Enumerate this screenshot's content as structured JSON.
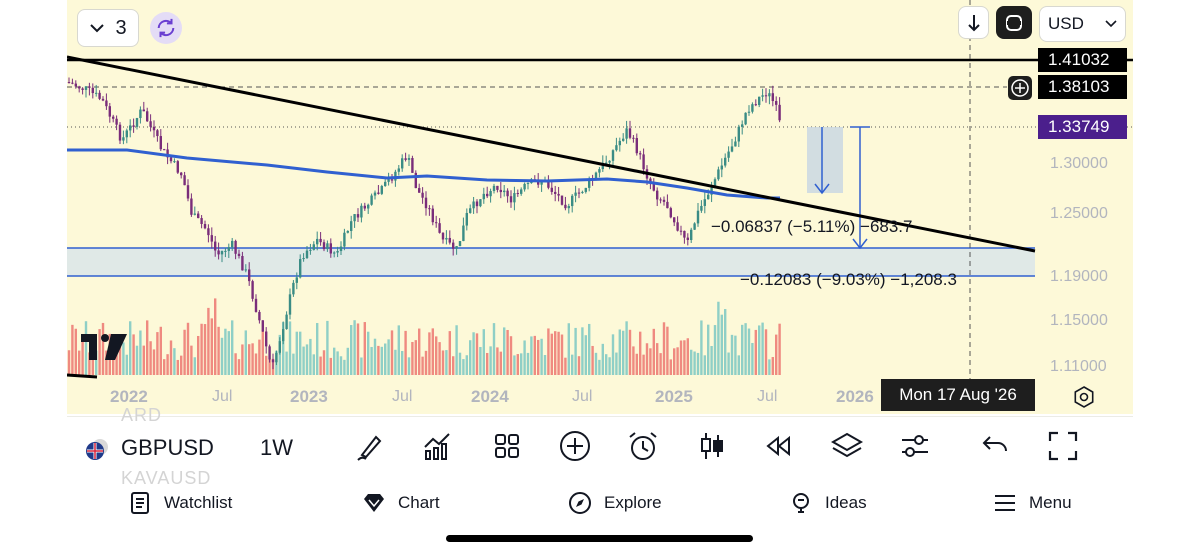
{
  "header": {
    "interval_count": "3",
    "currency": "USD"
  },
  "price_axis": {
    "tags": [
      {
        "id": "line-high",
        "value": "1.41032",
        "bg": "#000000",
        "fg": "#ffffff"
      },
      {
        "id": "line-dashed",
        "value": "1.38103",
        "bg": "#000000",
        "fg": "#ffffff"
      },
      {
        "id": "last-price",
        "value": "1.33749",
        "bg": "#4b1f8c",
        "fg": "#ffffff"
      }
    ],
    "ticks": [
      "1.30000",
      "1.25000",
      "1.19000",
      "1.15000",
      "1.11000"
    ]
  },
  "time_axis": {
    "years": [
      "2022",
      "2023",
      "2024",
      "2025",
      "2026"
    ],
    "months": [
      "Jul",
      "Jul",
      "Jul",
      "Jul"
    ],
    "crosshair_date": "Mon 17 Aug '26"
  },
  "measurements": [
    {
      "text": "−0.06837 (−5.11%) −683.7"
    },
    {
      "text": "−0.12083 (−9.03%) −1,208.3"
    }
  ],
  "symbol": {
    "name": "GBPUSD",
    "interval": "1W",
    "faded_above": "ARD",
    "faded_below": "KAVAUSD"
  },
  "tools": [
    "brush-icon",
    "indicators-icon",
    "layout-grid-icon",
    "add-icon",
    "alarm-icon",
    "candles-icon",
    "replay-icon",
    "layers-icon",
    "sliders-icon",
    "undo-icon",
    "fullscreen-icon"
  ],
  "nav": [
    {
      "label": "Watchlist",
      "icon": "watchlist-icon"
    },
    {
      "label": "Chart",
      "icon": "chart-icon"
    },
    {
      "label": "Explore",
      "icon": "explore-icon"
    },
    {
      "label": "Ideas",
      "icon": "ideas-icon"
    },
    {
      "label": "Menu",
      "icon": "menu-icon"
    }
  ],
  "colors": {
    "chart_bg": "#fdf9d8",
    "bull": "#3a8c85",
    "bear": "#7a2d7a",
    "ma": "#3060d0",
    "zone": "#dbe6ea",
    "volume_bull": "#8fcfc6",
    "volume_bear": "#ef8a80"
  }
}
